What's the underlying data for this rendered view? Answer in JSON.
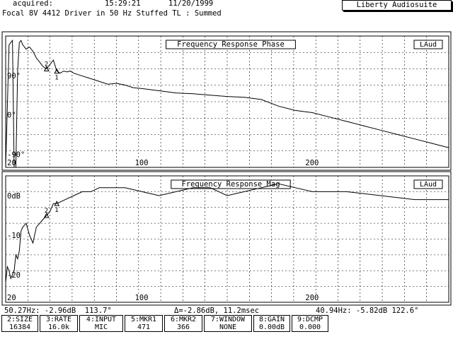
{
  "header": {
    "acquired_label": "acquired:",
    "time": "15:29:21",
    "date": "11/20/1999",
    "brand": "Liberty Audiosuite",
    "title": "Focal 8V 4412 Driver in 50 Hz Stuffed TL : Summed"
  },
  "plots": [
    {
      "title": "Frequency Response Phase",
      "badge": "LAud",
      "y_labels": [
        "90°",
        "0°",
        "-90°"
      ],
      "y_values": [
        90,
        0,
        -90
      ],
      "ylim": [
        -120,
        180
      ],
      "x_labels": [
        "20",
        "100",
        "200"
      ],
      "x_values": [
        20,
        100,
        200
      ],
      "xlim": [
        20,
        280
      ],
      "markers": [
        "1",
        "2"
      ]
    },
    {
      "title": "Frequency Response Mag",
      "badge": "LAud",
      "y_labels": [
        "0dB",
        "-10",
        "-20"
      ],
      "y_values": [
        0,
        -10,
        -20
      ],
      "ylim": [
        -27,
        5
      ],
      "x_labels": [
        "20",
        "100",
        "200"
      ],
      "x_values": [
        20,
        100,
        200
      ],
      "xlim": [
        20,
        280
      ],
      "markers": [
        "2",
        "1"
      ]
    }
  ],
  "status": {
    "marker1": "50.27Hz: -2.96dB  113.7°",
    "delta": "Δ=-2.86dB, 11.2msec",
    "marker2": "40.94Hz: -5.82dB 122.6°"
  },
  "fkeys": [
    {
      "top": "2:SIZE",
      "value": "16384"
    },
    {
      "top": "3:RATE",
      "value": "16.0k"
    },
    {
      "top": "4:INPUT",
      "value": "MIC"
    },
    {
      "top": "5:MKR1",
      "value": "471"
    },
    {
      "top": "6:MKR2",
      "value": "366"
    },
    {
      "top": "7:WINDOW",
      "value": "NONE"
    },
    {
      "top": "8:GAIN",
      "value": "0.00dB"
    },
    {
      "top": "9:DCMP",
      "value": "0.000"
    }
  ],
  "chart_data": [
    {
      "type": "line",
      "title": "Frequency Response Phase",
      "xlim": [
        20,
        280
      ],
      "ylim": [
        -120,
        180
      ],
      "x": [
        20,
        22,
        24,
        25,
        26,
        27,
        28,
        29,
        30,
        32,
        34,
        36,
        38,
        40,
        42,
        44,
        46,
        48,
        50,
        52,
        54,
        56,
        58,
        60,
        64,
        68,
        72,
        76,
        80,
        85,
        90,
        95,
        100,
        110,
        120,
        130,
        140,
        150,
        160,
        170,
        180,
        190,
        200,
        210,
        220,
        230,
        240,
        250,
        260,
        270,
        280
      ],
      "series": [
        {
          "values": [
            -150,
            160,
            170,
            -160,
            -150,
            100,
            165,
            170,
            160,
            150,
            155,
            145,
            130,
            120,
            110,
            105,
            115,
            125,
            100,
            95,
            100,
            98,
            100,
            95,
            90,
            85,
            80,
            75,
            70,
            72,
            68,
            62,
            60,
            55,
            50,
            48,
            45,
            42,
            40,
            35,
            20,
            10,
            5,
            -5,
            -15,
            -25,
            -35,
            -45,
            -55,
            -65,
            -75
          ]
        }
      ]
    },
    {
      "type": "line",
      "title": "Frequency Response Mag",
      "xlim": [
        20,
        280
      ],
      "ylim": [
        -27,
        5
      ],
      "x": [
        20,
        21,
        22,
        23,
        24,
        25,
        26,
        27,
        28,
        29,
        30,
        32,
        34,
        36,
        38,
        40,
        42,
        44,
        46,
        48,
        50,
        55,
        60,
        65,
        70,
        75,
        80,
        90,
        100,
        110,
        120,
        130,
        140,
        150,
        160,
        170,
        180,
        190,
        200,
        220,
        240,
        260,
        280
      ],
      "series": [
        {
          "values": [
            -22,
            -18,
            -19,
            -21,
            -20,
            -19,
            -15,
            -16,
            -14,
            -9,
            -8,
            -7,
            -10,
            -12,
            -8,
            -7,
            -6,
            -5,
            -4,
            -2,
            -2,
            -1,
            0,
            1,
            1,
            2,
            2,
            2,
            1,
            0,
            1,
            2,
            2,
            0,
            1,
            2,
            3,
            2,
            1,
            1,
            0,
            -1,
            -1
          ]
        }
      ]
    }
  ]
}
